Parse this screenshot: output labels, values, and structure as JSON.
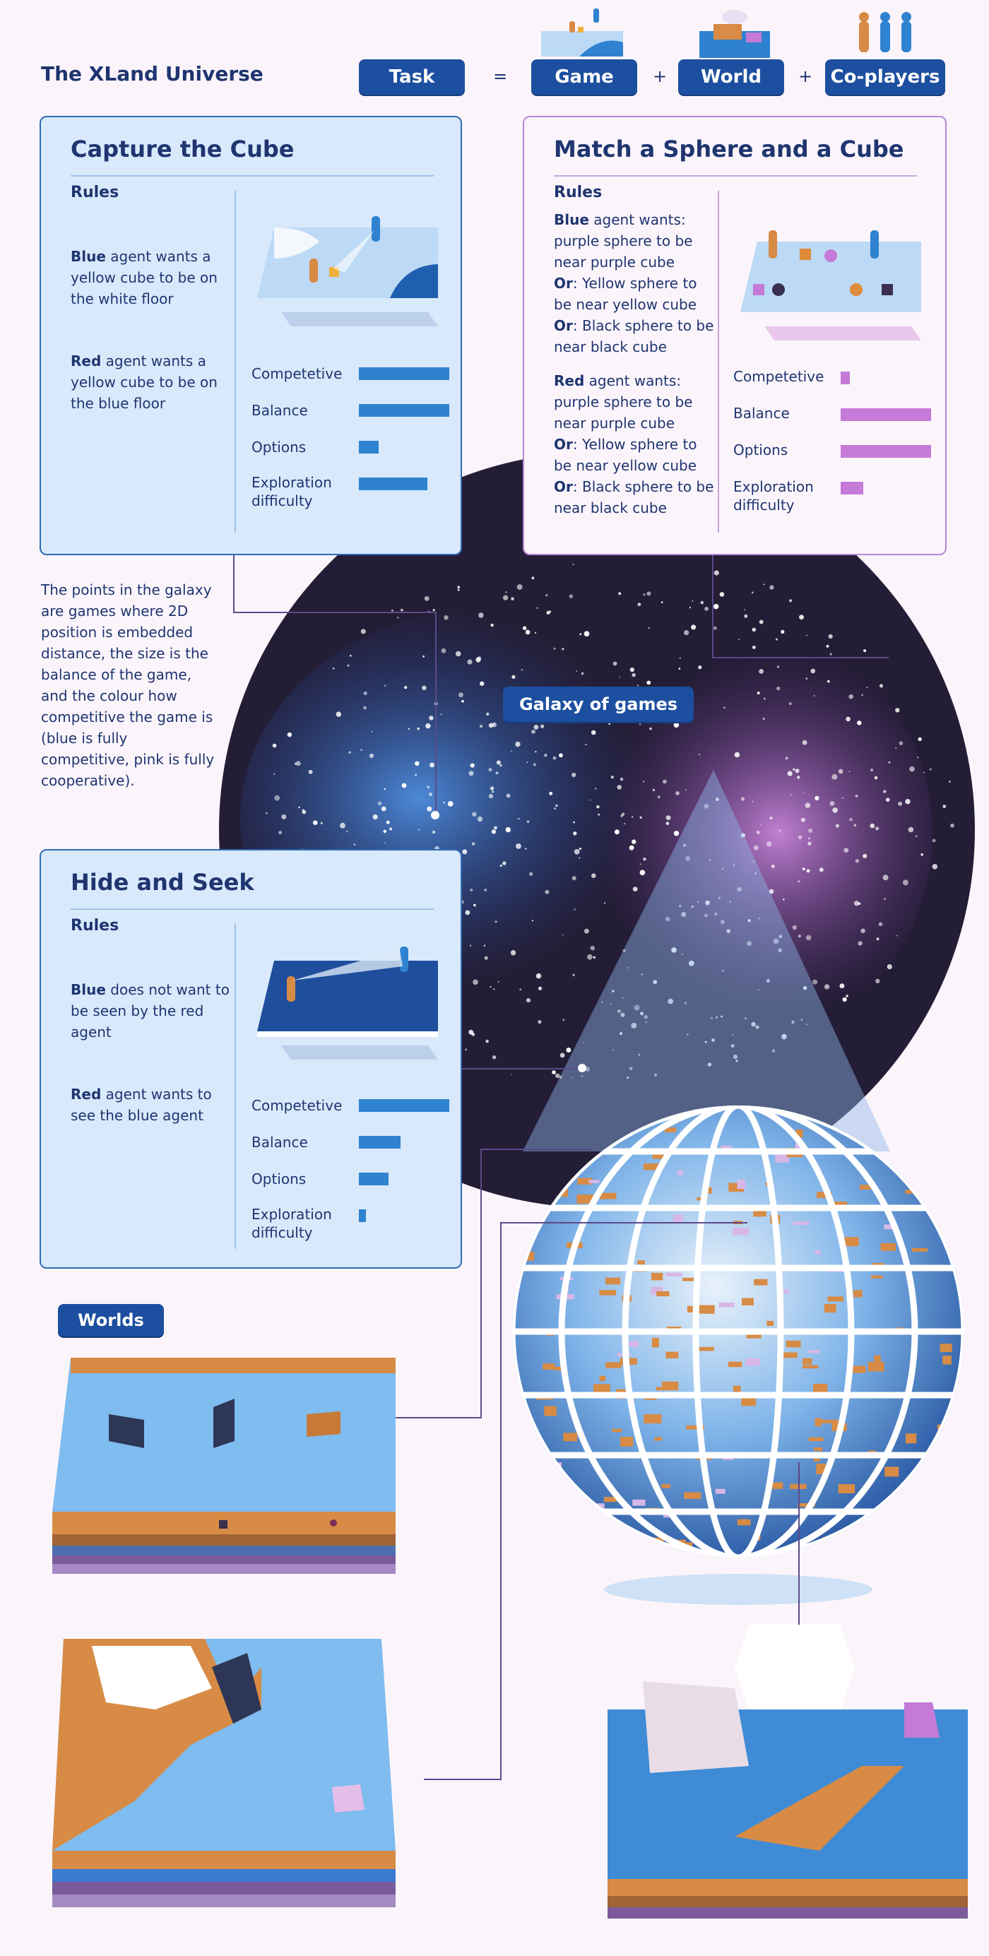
{
  "header": {
    "title": "The XLand Universe",
    "task": "Task",
    "equals": "=",
    "game": "Game",
    "plus1": "+",
    "world": "World",
    "plus2": "+",
    "coplayers": "Co-players"
  },
  "galaxy_label": "Galaxy of games",
  "side_text": "The points in the galaxy are games where 2D position is embedded distance, the size is the balance of the game, and the colour how competitive the game is (blue is fully competitive, pink is fully cooperative).",
  "worlds_label": "Worlds",
  "cards": {
    "capture": {
      "title": "Capture the Cube",
      "rules_heading": "Rules",
      "rule1_bold": "Blue",
      "rule1_rest": " agent wants a yellow cube to be on the white floor",
      "rule2_bold": "Red",
      "rule2_rest": " agent wants a yellow cube to be on the blue floor",
      "metrics": [
        {
          "label": "Competetive",
          "value": 1.0
        },
        {
          "label": "Balance",
          "value": 1.0
        },
        {
          "label": "Options",
          "value": 0.22
        },
        {
          "label": "Exploration difficulty",
          "value": 0.76
        }
      ]
    },
    "match": {
      "title": "Match a Sphere and a Cube",
      "rules_heading": "Rules",
      "blue_rules": [
        {
          "bold": "Blue",
          "rest": " agent wants: purple sphere to be near purple cube"
        },
        {
          "bold": "Or",
          "rest": ": Yellow sphere to be near yellow cube"
        },
        {
          "bold": "Or",
          "rest": ": Black sphere to be near black cube"
        }
      ],
      "red_rules": [
        {
          "bold": "Red",
          "rest": " agent wants: purple sphere to be near purple cube"
        },
        {
          "bold": "Or",
          "rest": ": Yellow sphere to be near yellow cube"
        },
        {
          "bold": "Or",
          "rest": ": Black sphere to be near black cube"
        }
      ],
      "metrics": [
        {
          "label": "Competetive",
          "value": 0.1
        },
        {
          "label": "Balance",
          "value": 1.0
        },
        {
          "label": "Options",
          "value": 1.0
        },
        {
          "label": "Exploration difficulty",
          "value": 0.25
        }
      ]
    },
    "hide": {
      "title": "Hide and Seek",
      "rules_heading": "Rules",
      "rule1_bold": "Blue",
      "rule1_rest": " does not want to be seen by the red agent",
      "rule2_bold": "Red",
      "rule2_rest": " agent wants to see the blue agent",
      "metrics": [
        {
          "label": "Competetive",
          "value": 1.0
        },
        {
          "label": "Balance",
          "value": 0.46
        },
        {
          "label": "Options",
          "value": 0.33
        },
        {
          "label": "Exploration difficulty",
          "value": 0.08
        }
      ]
    }
  },
  "colors": {
    "navy": "#1d4fa0",
    "card_blue": "#d8e9fb",
    "bar_blue": "#2f82cf",
    "bar_pink": "#c47ad6",
    "sand": "#d78b45",
    "water": "#5aa9e6",
    "galaxy_dark": "#241d36"
  }
}
